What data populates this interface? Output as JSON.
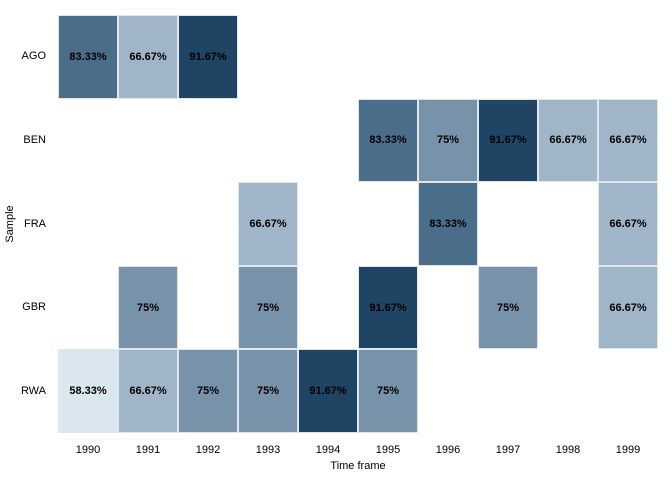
{
  "chart_data": {
    "type": "heatmap",
    "title": "",
    "xlabel": "Time frame",
    "ylabel": "Sample",
    "x_categories": [
      "1990",
      "1991",
      "1992",
      "1993",
      "1994",
      "1995",
      "1996",
      "1997",
      "1998",
      "1999"
    ],
    "y_categories": [
      "AGO",
      "BEN",
      "FRA",
      "GBR",
      "RWA"
    ],
    "cells": [
      {
        "row": "AGO",
        "col": "1990",
        "value": 83.33,
        "label": "83.33%"
      },
      {
        "row": "AGO",
        "col": "1991",
        "value": 66.67,
        "label": "66.67%"
      },
      {
        "row": "AGO",
        "col": "1992",
        "value": 91.67,
        "label": "91.67%"
      },
      {
        "row": "BEN",
        "col": "1995",
        "value": 83.33,
        "label": "83.33%"
      },
      {
        "row": "BEN",
        "col": "1996",
        "value": 75,
        "label": "75%"
      },
      {
        "row": "BEN",
        "col": "1997",
        "value": 91.67,
        "label": "91.67%"
      },
      {
        "row": "BEN",
        "col": "1998",
        "value": 66.67,
        "label": "66.67%"
      },
      {
        "row": "BEN",
        "col": "1999",
        "value": 66.67,
        "label": "66.67%"
      },
      {
        "row": "FRA",
        "col": "1993",
        "value": 66.67,
        "label": "66.67%"
      },
      {
        "row": "FRA",
        "col": "1996",
        "value": 83.33,
        "label": "83.33%"
      },
      {
        "row": "FRA",
        "col": "1999",
        "value": 66.67,
        "label": "66.67%"
      },
      {
        "row": "GBR",
        "col": "1991",
        "value": 75,
        "label": "75%"
      },
      {
        "row": "GBR",
        "col": "1993",
        "value": 75,
        "label": "75%"
      },
      {
        "row": "GBR",
        "col": "1995",
        "value": 91.67,
        "label": "91.67%"
      },
      {
        "row": "GBR",
        "col": "1997",
        "value": 75,
        "label": "75%"
      },
      {
        "row": "GBR",
        "col": "1999",
        "value": 66.67,
        "label": "66.67%"
      },
      {
        "row": "RWA",
        "col": "1990",
        "value": 58.33,
        "label": "58.33%"
      },
      {
        "row": "RWA",
        "col": "1991",
        "value": 66.67,
        "label": "66.67%"
      },
      {
        "row": "RWA",
        "col": "1992",
        "value": 75,
        "label": "75%"
      },
      {
        "row": "RWA",
        "col": "1993",
        "value": 75,
        "label": "75%"
      },
      {
        "row": "RWA",
        "col": "1994",
        "value": 91.67,
        "label": "91.67%"
      },
      {
        "row": "RWA",
        "col": "1995",
        "value": 75,
        "label": "75%"
      }
    ],
    "color_scale": {
      "58.33": "#dae7ef",
      "66.67": "#a0b6c8",
      "75": "#7792a9",
      "83.33": "#4a6d8a",
      "91.67": "#204464"
    },
    "colors": {
      "background": "#ffffff",
      "cell_border": "#dfe7ed",
      "text": "#000000"
    },
    "legend": "none",
    "grid": "off"
  }
}
